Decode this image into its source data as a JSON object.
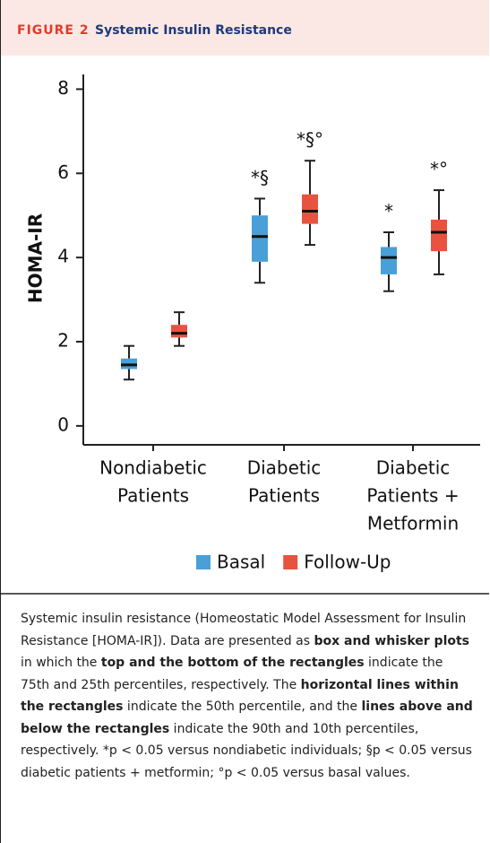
{
  "chart_data": {
    "type": "box",
    "figure_label": "FIGURE 2",
    "title": "Systemic Insulin Resistance",
    "ylabel": "HOMA-IR",
    "categories": [
      [
        "Nondiabetic",
        "Patients"
      ],
      [
        "Diabetic",
        "Patients"
      ],
      [
        "Diabetic",
        "Patients +",
        "Metformin"
      ]
    ],
    "ylim": [
      -0.45,
      8.35
    ],
    "yticks": [
      0,
      2,
      4,
      6,
      8
    ],
    "series": [
      {
        "name": "Basal",
        "color": "#4a9fd8",
        "boxes": [
          {
            "whislo": 1.1,
            "q1": 1.35,
            "med": 1.45,
            "q3": 1.6,
            "whishi": 1.9
          },
          {
            "whislo": 3.4,
            "q1": 3.9,
            "med": 4.5,
            "q3": 5.0,
            "whishi": 5.4
          },
          {
            "whislo": 3.2,
            "q1": 3.6,
            "med": 4.0,
            "q3": 4.25,
            "whishi": 4.6
          }
        ],
        "annotations": [
          null,
          "*§",
          "*"
        ]
      },
      {
        "name": "Follow-Up",
        "color": "#e8533f",
        "boxes": [
          {
            "whislo": 1.9,
            "q1": 2.1,
            "med": 2.2,
            "q3": 2.4,
            "whishi": 2.7
          },
          {
            "whislo": 4.3,
            "q1": 4.8,
            "med": 5.1,
            "q3": 5.5,
            "whishi": 6.3
          },
          {
            "whislo": 3.6,
            "q1": 4.15,
            "med": 4.6,
            "q3": 4.9,
            "whishi": 5.6
          }
        ],
        "annotations": [
          null,
          "*§°",
          "*°"
        ]
      }
    ],
    "caption": [
      {
        "text": "Systemic insulin resistance (Homeostatic Model Assessment for Insulin Resistance [HOMA-IR]). Data are presented as ",
        "bold": false
      },
      {
        "text": "box and whisker plots",
        "bold": true
      },
      {
        "text": " in which the ",
        "bold": false
      },
      {
        "text": "top and the bottom of the rectangles",
        "bold": true
      },
      {
        "text": " indicate the 75th and 25th percentiles, respectively. The ",
        "bold": false
      },
      {
        "text": "horizontal lines within the rectangles",
        "bold": true
      },
      {
        "text": " indicate the 50th percentile, and the ",
        "bold": false
      },
      {
        "text": "lines above and below the rectangles",
        "bold": true
      },
      {
        "text": " indicate the 90th and 10th percentiles, respectively. *p < 0.05 versus nondiabetic individuals; §p < 0.05 versus diabetic patients + metformin; °p < 0.05 versus basal values.",
        "bold": false
      }
    ]
  }
}
